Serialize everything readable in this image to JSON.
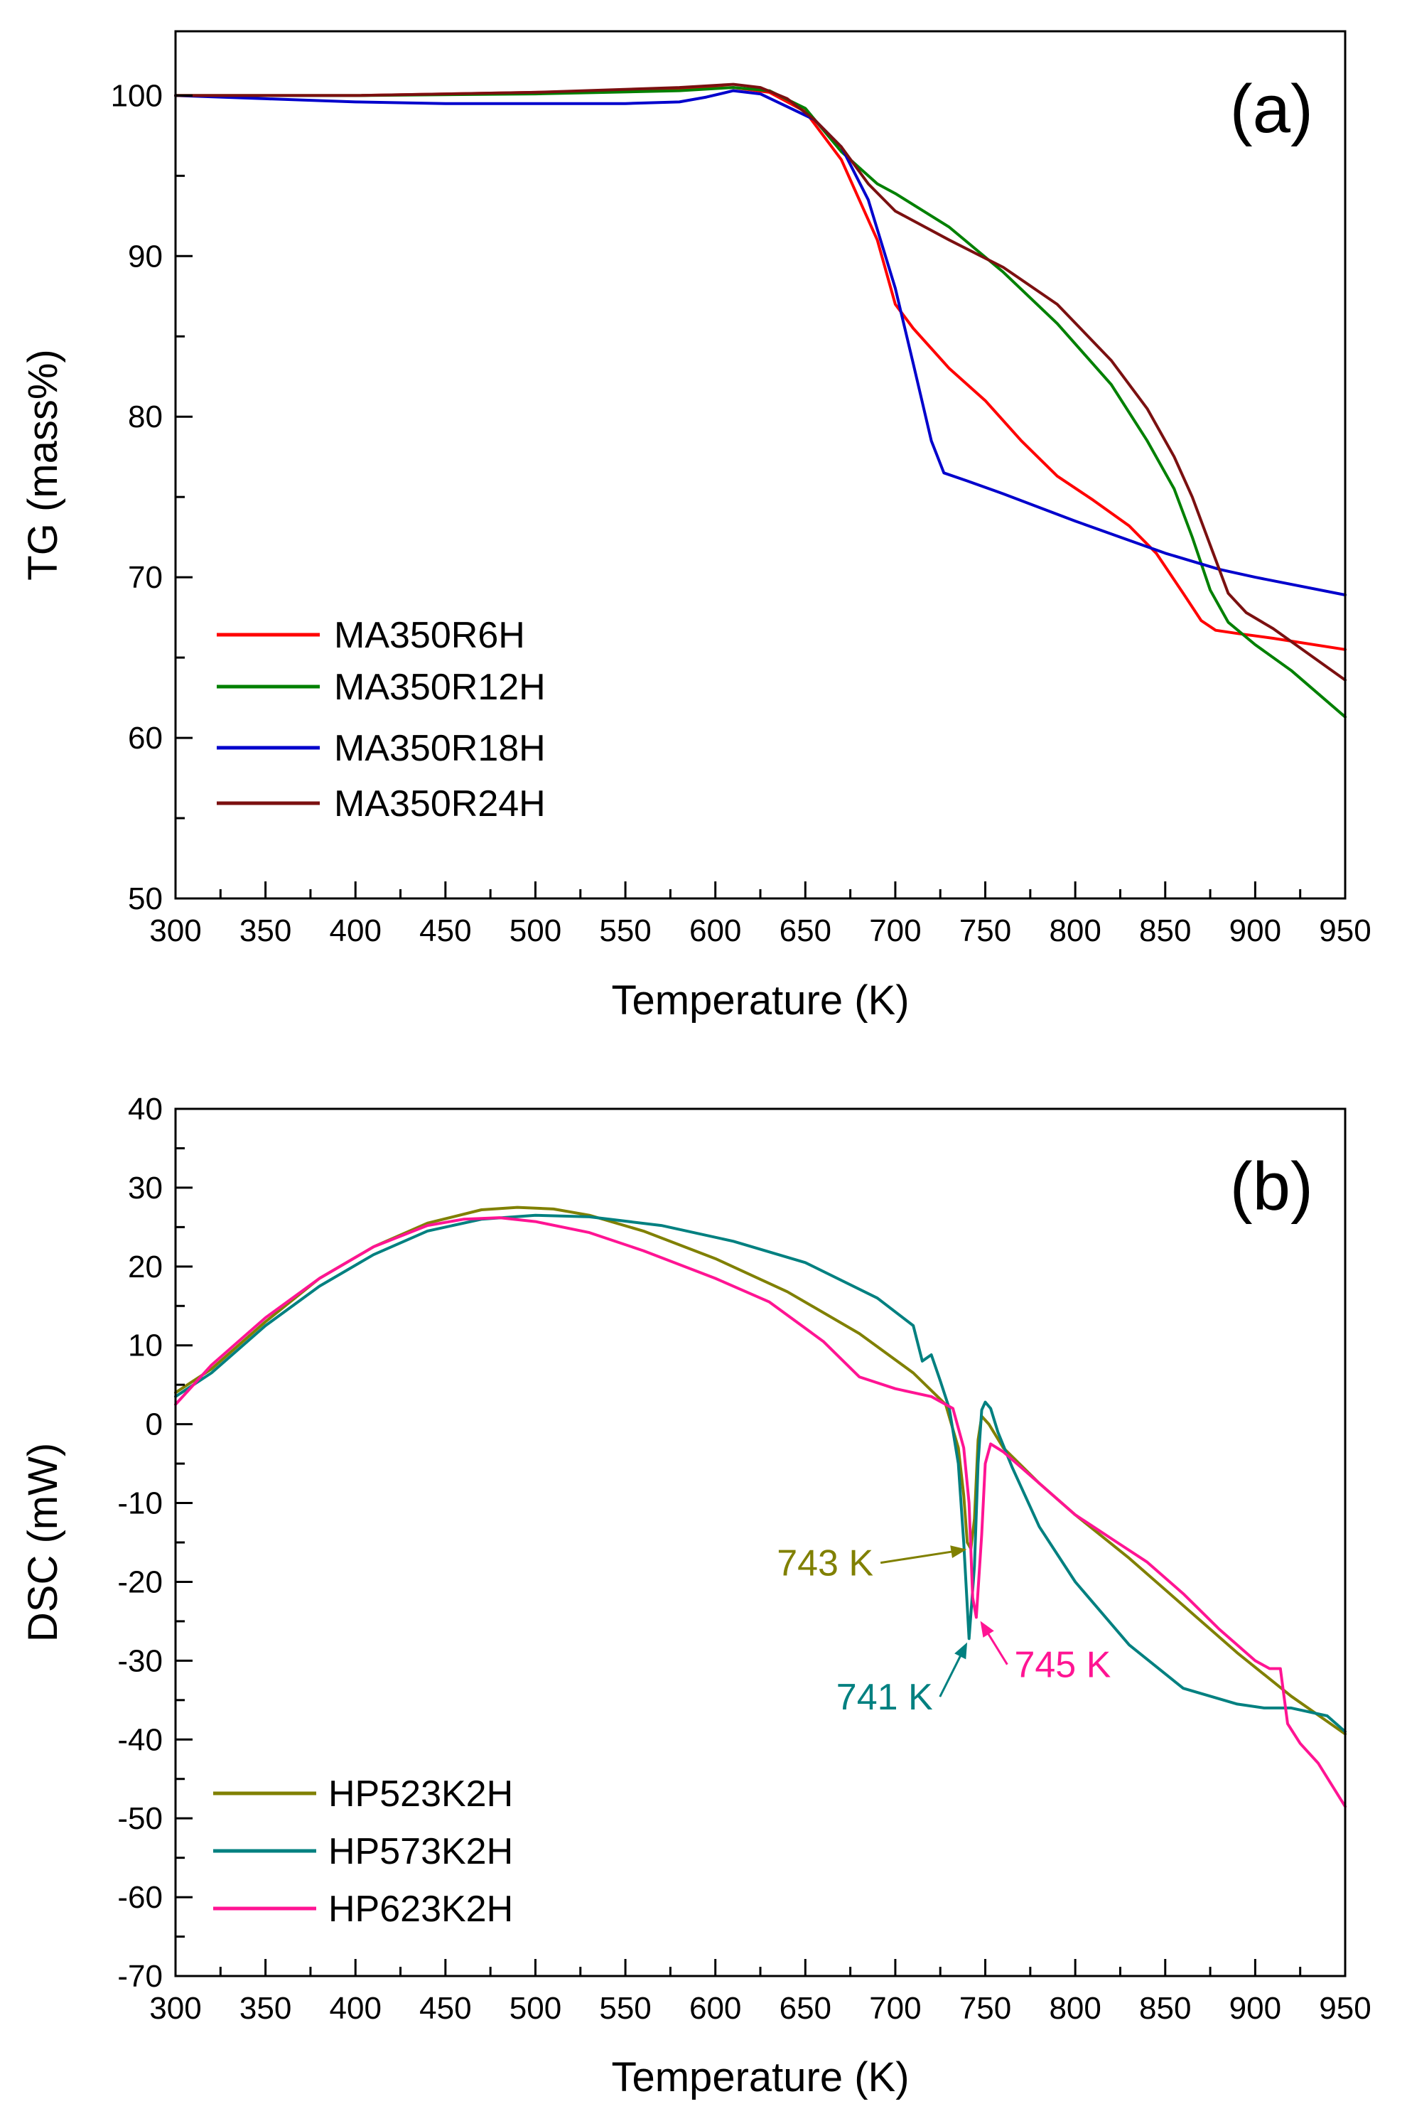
{
  "chart_data": [
    {
      "type": "line",
      "panel_label": "(a)",
      "xlabel": "Temperature (K)",
      "ylabel": "TG (mass%)",
      "xlim": [
        300,
        950
      ],
      "ylim": [
        50,
        104
      ],
      "xticks": [
        300,
        350,
        400,
        450,
        500,
        550,
        600,
        650,
        700,
        750,
        800,
        850,
        900,
        950
      ],
      "yticks": [
        50,
        60,
        70,
        80,
        90,
        100
      ],
      "legend_position": "lower-left",
      "series": [
        {
          "name": "MA350R6H",
          "color": "#ff0000",
          "x": [
            300,
            400,
            500,
            580,
            610,
            630,
            650,
            670,
            690,
            700,
            710,
            730,
            750,
            770,
            790,
            810,
            830,
            845,
            860,
            870,
            878,
            890,
            910,
            950
          ],
          "y": [
            100,
            100,
            100.2,
            100.4,
            100.5,
            100.2,
            99,
            96,
            91,
            87,
            85.5,
            83,
            81,
            78.5,
            76.3,
            74.8,
            73.2,
            71.5,
            69,
            67.3,
            66.7,
            66.5,
            66.2,
            65.5
          ]
        },
        {
          "name": "MA350R12H",
          "color": "#008000",
          "x": [
            300,
            400,
            500,
            580,
            610,
            630,
            650,
            670,
            690,
            700,
            730,
            760,
            790,
            820,
            840,
            855,
            865,
            875,
            885,
            900,
            920,
            950
          ],
          "y": [
            100,
            100,
            100.1,
            100.3,
            100.5,
            100.3,
            99.2,
            96.5,
            94.5,
            93.9,
            91.8,
            89,
            85.8,
            82,
            78.5,
            75.5,
            72.5,
            69.2,
            67.2,
            65.8,
            64.2,
            61.3
          ]
        },
        {
          "name": "MA350R18H",
          "color": "#0000cc",
          "x": [
            300,
            350,
            400,
            450,
            500,
            550,
            580,
            595,
            610,
            625,
            640,
            655,
            670,
            685,
            700,
            710,
            720,
            727,
            740,
            760,
            800,
            850,
            880,
            900,
            950
          ],
          "y": [
            100,
            99.8,
            99.6,
            99.5,
            99.5,
            99.5,
            99.6,
            99.9,
            100.3,
            100.1,
            99.3,
            98.5,
            96.8,
            93.5,
            88,
            83.3,
            78.5,
            76.5,
            76,
            75.2,
            73.5,
            71.5,
            70.5,
            70,
            68.9
          ]
        },
        {
          "name": "MA350R24H",
          "color": "#7b1010",
          "x": [
            300,
            400,
            500,
            580,
            610,
            625,
            640,
            655,
            670,
            685,
            700,
            730,
            760,
            790,
            820,
            840,
            855,
            865,
            875,
            885,
            895,
            910,
            950
          ],
          "y": [
            100,
            100,
            100.2,
            100.5,
            100.7,
            100.5,
            99.8,
            98.5,
            96.8,
            94.5,
            92.8,
            91,
            89.3,
            87,
            83.5,
            80.5,
            77.5,
            75,
            72,
            69,
            67.8,
            66.8,
            63.6
          ]
        }
      ]
    },
    {
      "type": "line",
      "panel_label": "(b)",
      "xlabel": "Temperature (K)",
      "ylabel": "DSC (mW)",
      "xlim": [
        300,
        950
      ],
      "ylim": [
        -70,
        40
      ],
      "xticks": [
        300,
        350,
        400,
        450,
        500,
        550,
        600,
        650,
        700,
        750,
        800,
        850,
        900,
        950
      ],
      "yticks": [
        -70,
        -60,
        -50,
        -40,
        -30,
        -20,
        -10,
        0,
        10,
        20,
        30,
        40
      ],
      "legend_position": "lower-left",
      "series": [
        {
          "name": "HP523K2H",
          "color": "#808000",
          "x": [
            300,
            320,
            350,
            380,
            410,
            440,
            470,
            490,
            510,
            530,
            560,
            600,
            640,
            680,
            710,
            728,
            735,
            738,
            740,
            742,
            744,
            746,
            748,
            752,
            760,
            780,
            800,
            830,
            860,
            890,
            920,
            950
          ],
          "y": [
            4,
            7,
            13,
            18.5,
            22.5,
            25.5,
            27.2,
            27.5,
            27.3,
            26.5,
            24.5,
            21,
            16.8,
            11.5,
            6.5,
            2.5,
            -3,
            -9,
            -15,
            -15.8,
            -12,
            -2,
            1,
            0,
            -3,
            -7.5,
            -11.5,
            -17,
            -23,
            -29,
            -34.5,
            -39.3
          ]
        },
        {
          "name": "HP573K2H",
          "color": "#008080",
          "x": [
            300,
            320,
            350,
            380,
            410,
            440,
            470,
            500,
            530,
            570,
            610,
            650,
            690,
            710,
            715,
            720,
            725,
            730,
            735,
            738,
            741,
            744,
            746,
            748,
            750,
            753,
            757,
            765,
            780,
            800,
            830,
            860,
            890,
            905,
            920,
            940,
            950
          ],
          "y": [
            3.5,
            6.5,
            12.5,
            17.5,
            21.5,
            24.5,
            26,
            26.5,
            26.3,
            25.2,
            23.2,
            20.5,
            16,
            12.5,
            8,
            8.8,
            5.5,
            2,
            -5,
            -15,
            -27.2,
            -18,
            -5,
            1.8,
            2.8,
            2,
            -1,
            -5.5,
            -13,
            -20,
            -28,
            -33.5,
            -35.5,
            -36,
            -36,
            -37,
            -39
          ]
        },
        {
          "name": "HP623K2H",
          "color": "#ff1493",
          "x": [
            300,
            320,
            350,
            380,
            410,
            440,
            460,
            480,
            500,
            530,
            560,
            600,
            630,
            660,
            680,
            700,
            720,
            732,
            738,
            741,
            743,
            745,
            748,
            750,
            753,
            760,
            780,
            800,
            820,
            840,
            860,
            880,
            900,
            908,
            914,
            918,
            925,
            935,
            950
          ],
          "y": [
            2.5,
            7.5,
            13.5,
            18.5,
            22.5,
            25.2,
            26,
            26.2,
            25.7,
            24.3,
            22,
            18.5,
            15.5,
            10.5,
            6,
            4.5,
            3.5,
            2,
            -3,
            -10,
            -22,
            -24.5,
            -14,
            -5,
            -2.5,
            -3.5,
            -7.5,
            -11.5,
            -14.5,
            -17.5,
            -21.5,
            -26,
            -30,
            -31,
            -31,
            -38,
            -40.5,
            -43,
            -48.5
          ]
        }
      ],
      "annotations": [
        {
          "text": "743 K",
          "series": "HP523K2H",
          "target": [
            742,
            -15.8
          ],
          "label_at": [
            661,
            -19.2
          ],
          "color": "#808000"
        },
        {
          "text": "741 K",
          "series": "HP573K2H",
          "target": [
            741,
            -27.2
          ],
          "label_at": [
            694,
            -36.2
          ],
          "color": "#008080"
        },
        {
          "text": "745 K",
          "series": "HP623K2H",
          "target": [
            746,
            -24.5
          ],
          "label_at": [
            793,
            -32.1
          ],
          "color": "#ff1493"
        }
      ]
    }
  ]
}
